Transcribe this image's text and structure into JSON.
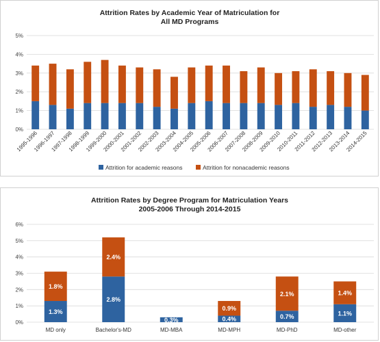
{
  "chart_data": [
    {
      "type": "bar",
      "stacked": true,
      "title": "Attrition Rates by Academic Year of Matriculation for",
      "subtitle": "All MD Programs",
      "ylim": [
        0,
        5
      ],
      "yticks": [
        "0%",
        "1%",
        "2%",
        "3%",
        "4%",
        "5%"
      ],
      "grid": true,
      "legend_position": "bottom",
      "categories": [
        "1995-1996",
        "1996-1997",
        "1997-1998",
        "1998-1999",
        "1999-2000",
        "2000-2001",
        "2001-2002",
        "2002-2003",
        "2003-2004",
        "2004-2005",
        "2005-2006",
        "2006-2007",
        "2007-2008",
        "2008-2009",
        "2009-2010",
        "2010-2011",
        "2011-2012",
        "2012-2013",
        "2013-2014",
        "2014-2015"
      ],
      "series": [
        {
          "name": "Attrition for academic reasons",
          "color": "#2E63A0",
          "values": [
            1.5,
            1.3,
            1.1,
            1.4,
            1.4,
            1.4,
            1.4,
            1.2,
            1.1,
            1.4,
            1.5,
            1.4,
            1.4,
            1.4,
            1.3,
            1.4,
            1.2,
            1.3,
            1.2,
            1.0
          ]
        },
        {
          "name": "Attrition for nonacademic reasons",
          "color": "#C55012",
          "values": [
            1.9,
            2.2,
            2.1,
            2.2,
            2.3,
            2.0,
            1.9,
            2.0,
            1.7,
            1.9,
            1.9,
            2.0,
            1.7,
            1.9,
            1.7,
            1.7,
            2.0,
            1.8,
            1.8,
            1.9
          ]
        }
      ]
    },
    {
      "type": "bar",
      "stacked": true,
      "title": "Attrition Rates by Degree Program for Matriculation Years",
      "subtitle": "2005-2006 Through 2014-2015",
      "ylim": [
        0,
        6
      ],
      "yticks": [
        "0%",
        "1%",
        "2%",
        "3%",
        "4%",
        "5%",
        "6%"
      ],
      "grid": true,
      "categories": [
        "MD only",
        "Bachelor's-MD",
        "MD-MBA",
        "MD-MPH",
        "MD-PhD",
        "MD-other"
      ],
      "series": [
        {
          "name": "Attrition for academic reasons",
          "color": "#2E63A0",
          "values": [
            1.3,
            2.8,
            0.3,
            0.4,
            0.7,
            1.1
          ],
          "labels": [
            "1.3%",
            "2.8%",
            "0.3%",
            "0.4%",
            "0.7%",
            "1.1%"
          ]
        },
        {
          "name": "Attrition for nonacademic reasons",
          "color": "#C55012",
          "values": [
            1.8,
            2.4,
            0,
            0.9,
            2.1,
            1.4
          ],
          "labels": [
            "1.8%",
            "2.4%",
            "",
            "0.9%",
            "2.1%",
            "1.4%"
          ]
        }
      ]
    }
  ]
}
